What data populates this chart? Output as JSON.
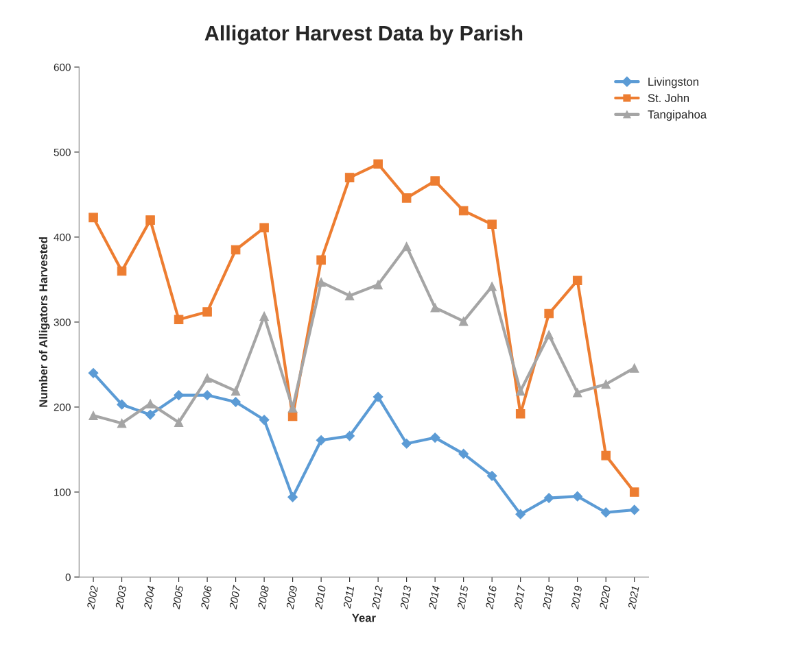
{
  "chart_data": {
    "type": "line",
    "title": "Alligator Harvest Data by Parish",
    "xlabel": "Year",
    "ylabel": "Number of Alligators Harvested",
    "categories": [
      "2002",
      "2003",
      "2004",
      "2005",
      "2006",
      "2007",
      "2008",
      "2009",
      "2010",
      "2011",
      "2012",
      "2013",
      "2014",
      "2015",
      "2016",
      "2017",
      "2018",
      "2019",
      "2020",
      "2021"
    ],
    "series": [
      {
        "name": "Livingston",
        "color": "#5b9bd5",
        "marker": "diamond",
        "values": [
          240,
          203,
          191,
          214,
          214,
          206,
          185,
          94,
          161,
          166,
          212,
          157,
          164,
          145,
          119,
          74,
          93,
          95,
          76,
          79
        ]
      },
      {
        "name": "St. John",
        "color": "#ed7d31",
        "marker": "square",
        "values": [
          423,
          360,
          420,
          303,
          312,
          385,
          411,
          189,
          373,
          470,
          486,
          446,
          466,
          431,
          415,
          192,
          310,
          349,
          143,
          100
        ]
      },
      {
        "name": "Tangipahoa",
        "color": "#a5a5a5",
        "marker": "triangle",
        "values": [
          190,
          181,
          204,
          182,
          234,
          219,
          307,
          199,
          347,
          331,
          344,
          389,
          317,
          301,
          342,
          219,
          285,
          217,
          227,
          246
        ]
      }
    ],
    "ylim": [
      0,
      600
    ],
    "yticks": [
      0,
      100,
      200,
      300,
      400,
      500,
      600
    ],
    "grid": false,
    "legend": "top right",
    "line_style": "solid"
  }
}
